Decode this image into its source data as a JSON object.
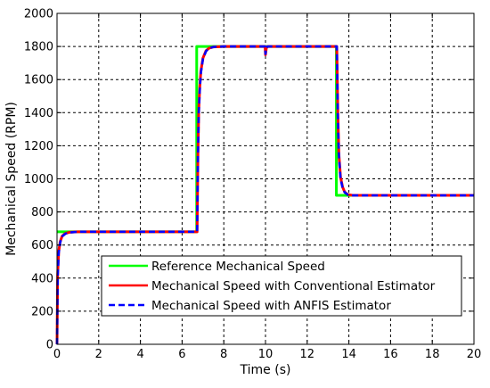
{
  "chart_data": {
    "type": "line",
    "title": "",
    "xlabel": "Time (s)",
    "ylabel": "Mechanical Speed (RPM)",
    "xlim": [
      0,
      20
    ],
    "ylim": [
      0,
      2000
    ],
    "xticks": [
      0,
      2,
      4,
      6,
      8,
      10,
      12,
      14,
      16,
      18,
      20
    ],
    "yticks": [
      0,
      200,
      400,
      600,
      800,
      1000,
      1200,
      1400,
      1600,
      1800,
      2000
    ],
    "grid": true,
    "legend_position": "bottom-right",
    "series": [
      {
        "name": "Reference Mechanical Speed",
        "color": "#00ff00",
        "style": "solid",
        "x": [
          0,
          6.7,
          6.7,
          13.4,
          13.4,
          20
        ],
        "y": [
          680,
          680,
          1800,
          1800,
          900,
          900
        ]
      },
      {
        "name": "Mechanical Speed with Conventional Estimator",
        "color": "#ff0000",
        "style": "solid",
        "x": [
          0,
          0.03,
          0.08,
          0.15,
          0.25,
          0.4,
          0.6,
          1.0,
          6.72,
          6.76,
          6.8,
          6.85,
          6.9,
          7.0,
          7.15,
          7.3,
          7.5,
          8.0,
          9.98,
          10.0,
          10.04,
          10.1,
          13.42,
          13.47,
          13.52,
          13.6,
          13.7,
          13.8,
          13.95,
          14.2,
          20
        ],
        "y": [
          0,
          420,
          560,
          620,
          655,
          670,
          677,
          680,
          680,
          1150,
          1420,
          1560,
          1650,
          1730,
          1775,
          1790,
          1797,
          1800,
          1800,
          1750,
          1790,
          1800,
          1800,
          1400,
          1150,
          1010,
          950,
          920,
          905,
          900,
          900
        ]
      },
      {
        "name": "Mechanical Speed with ANFIS Estimator",
        "color": "#0000ff",
        "style": "dashed",
        "x": [
          0,
          0.03,
          0.08,
          0.15,
          0.25,
          0.4,
          0.6,
          1.0,
          6.72,
          6.76,
          6.8,
          6.85,
          6.9,
          7.0,
          7.15,
          7.3,
          7.5,
          8.0,
          9.98,
          10.0,
          10.04,
          10.1,
          13.42,
          13.47,
          13.52,
          13.6,
          13.7,
          13.8,
          13.95,
          14.2,
          20
        ],
        "y": [
          0,
          400,
          550,
          615,
          652,
          668,
          676,
          680,
          680,
          1130,
          1400,
          1545,
          1640,
          1725,
          1772,
          1789,
          1797,
          1800,
          1800,
          1755,
          1792,
          1800,
          1800,
          1380,
          1140,
          1000,
          945,
          918,
          904,
          900,
          900
        ]
      }
    ]
  }
}
